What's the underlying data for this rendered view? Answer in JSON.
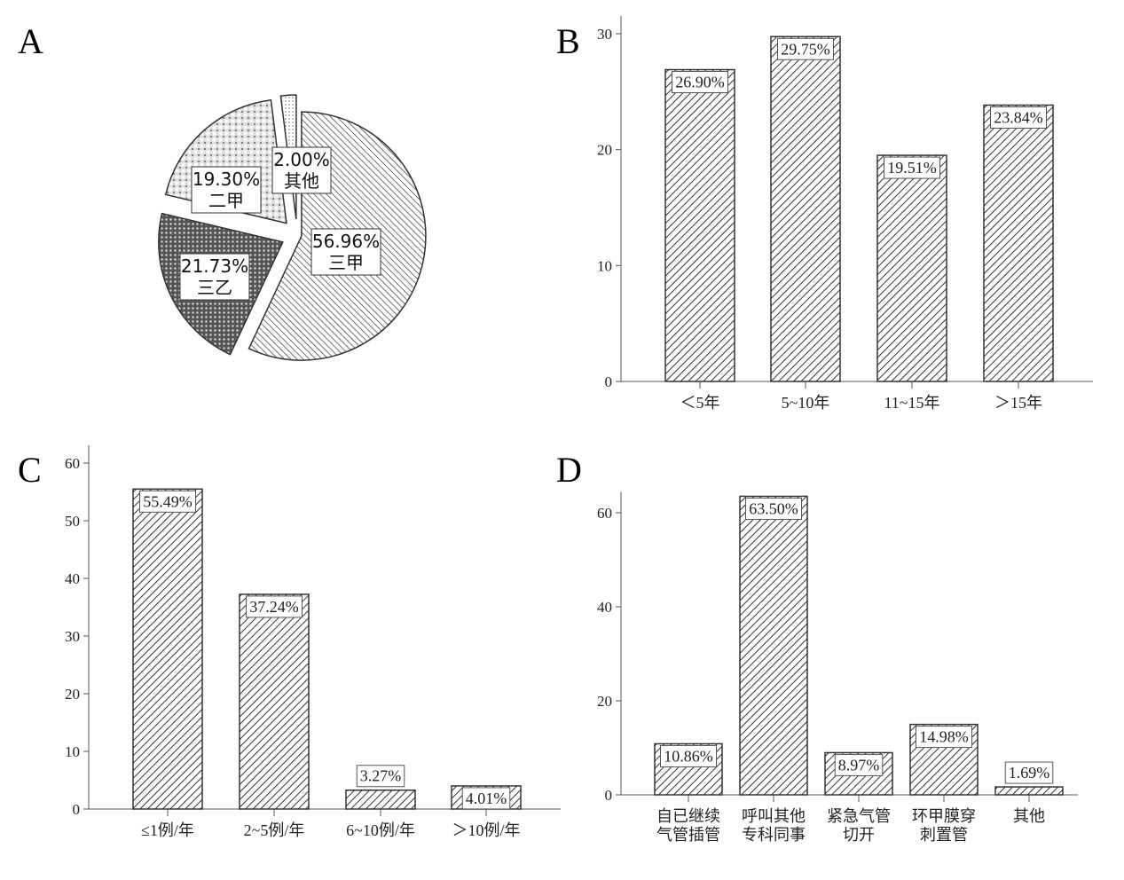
{
  "chart_data": [
    {
      "panel": "A",
      "type": "pie",
      "categories": [
        "三甲",
        "三乙",
        "二甲",
        "其他"
      ],
      "values": [
        56.96,
        21.73,
        19.3,
        2.0
      ],
      "labels": [
        "56.96%",
        "21.73%",
        "19.30%",
        "2.00%"
      ]
    },
    {
      "panel": "B",
      "type": "bar",
      "categories": [
        "＜5年",
        "5~10年",
        "11~15年",
        "＞15年"
      ],
      "values": [
        26.9,
        29.75,
        19.51,
        23.84
      ],
      "labels": [
        "26.90%",
        "29.75%",
        "19.51%",
        "23.84%"
      ],
      "ylim": [
        0,
        30
      ],
      "yticks": [
        "0",
        "10",
        "20",
        "30"
      ]
    },
    {
      "panel": "C",
      "type": "bar",
      "categories": [
        "≤1例/年",
        "2~5例/年",
        "6~10例/年",
        "＞10例/年"
      ],
      "values": [
        55.49,
        37.24,
        3.27,
        4.01
      ],
      "labels": [
        "55.49%",
        "37.24%",
        "3.27%",
        "4.01%"
      ],
      "ylim": [
        0,
        60
      ],
      "yticks": [
        "0",
        "10",
        "20",
        "30",
        "40",
        "50",
        "60"
      ]
    },
    {
      "panel": "D",
      "type": "bar",
      "categories": [
        [
          "自已继续",
          "气管插管"
        ],
        [
          "呼叫其他",
          "专科同事"
        ],
        [
          "紧急气管",
          "切开"
        ],
        [
          "环甲膜穿",
          "刺置管"
        ],
        [
          "其他"
        ]
      ],
      "values": [
        10.86,
        63.5,
        8.97,
        14.98,
        1.69
      ],
      "labels": [
        "10.86%",
        "63.50%",
        "8.97%",
        "14.98%",
        "1.69%"
      ],
      "ylim": [
        0,
        60
      ],
      "yticks": [
        "0",
        "20",
        "40",
        "60"
      ]
    }
  ]
}
